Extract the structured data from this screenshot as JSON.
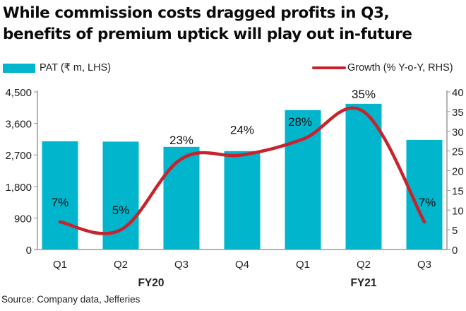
{
  "title_lines": [
    "While commission costs dragged profits in Q3,",
    "benefits of premium uptick will play out in-future"
  ],
  "legend": {
    "bar_label": "PAT (₹ m, LHS)",
    "line_label": "Growth (% Y-o-Y, RHS)"
  },
  "source": "Source: Company data, Jefferies",
  "colors": {
    "bar": "#00B5CC",
    "line": "#C8232C",
    "axis": "#9a9a9a",
    "text": "#111111"
  },
  "chart_data": {
    "type": "bar",
    "title": "While commission costs dragged profits in Q3, benefits of premium uptick will play out in-future",
    "categories": [
      "Q1",
      "Q2",
      "Q3",
      "Q4",
      "Q1",
      "Q2",
      "Q3"
    ],
    "groups": [
      {
        "label": "FY20",
        "categories": [
          "Q1",
          "Q2",
          "Q3",
          "Q4"
        ]
      },
      {
        "label": "FY21",
        "categories": [
          "Q1",
          "Q2",
          "Q3"
        ]
      }
    ],
    "series": [
      {
        "name": "PAT (₹ m, LHS)",
        "type": "bar",
        "axis": "left",
        "values": [
          3090,
          3080,
          2930,
          2810,
          3980,
          4160,
          3130
        ]
      },
      {
        "name": "Growth (% Y-o-Y, RHS)",
        "type": "line",
        "axis": "right",
        "values": [
          7,
          5,
          23,
          24,
          28,
          35,
          7
        ],
        "data_labels": [
          "7%",
          "5%",
          "23%",
          "24%",
          "28%",
          "35%",
          "7%"
        ]
      }
    ],
    "y_left": {
      "ylim": [
        0,
        4500
      ],
      "ticks": [
        0,
        900,
        1800,
        2700,
        3600,
        4500
      ],
      "tick_labels": [
        "0",
        "900",
        "1,800",
        "2,700",
        "3,600",
        "4,500"
      ]
    },
    "y_right": {
      "ylim": [
        0,
        40
      ],
      "ticks": [
        0,
        5,
        10,
        15,
        20,
        25,
        30,
        35,
        40
      ],
      "tick_labels": [
        "0",
        "5",
        "10",
        "15",
        "20",
        "25",
        "30",
        "35",
        "40"
      ]
    },
    "xlabel": "",
    "ylabel": "",
    "grid": false,
    "legend_position": "top"
  }
}
